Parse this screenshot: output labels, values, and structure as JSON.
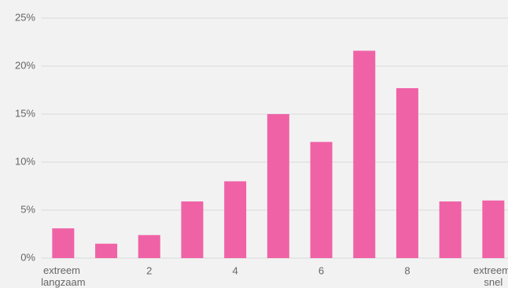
{
  "chart_data": {
    "type": "bar",
    "categories": [
      "extreem langzaam",
      null,
      "2",
      null,
      "4",
      null,
      "6",
      null,
      "8",
      null,
      "extreem snel"
    ],
    "values": [
      3.1,
      1.5,
      2.4,
      5.9,
      8.0,
      15.0,
      12.1,
      21.6,
      17.7,
      5.9,
      6.0
    ],
    "color": "#f062a6",
    "ylim": [
      0,
      25
    ],
    "yticks": [
      {
        "value": 0,
        "label": "0%"
      },
      {
        "value": 5,
        "label": "5%"
      },
      {
        "value": 10,
        "label": "10%"
      },
      {
        "value": 15,
        "label": "15%"
      },
      {
        "value": 20,
        "label": "20%"
      },
      {
        "value": 25,
        "label": "25%"
      }
    ],
    "grid": true
  }
}
